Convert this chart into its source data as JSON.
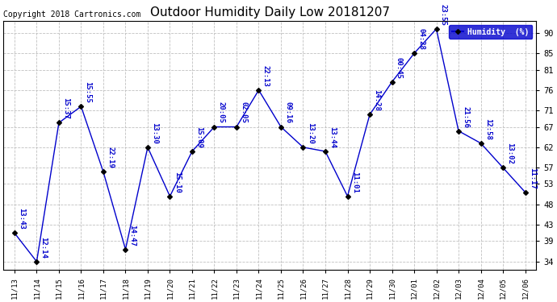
{
  "title": "Outdoor Humidity Daily Low 20181207",
  "copyright": "Copyright 2018 Cartronics.com",
  "legend_label": "Humidity  (%)",
  "x_labels": [
    "11/13",
    "11/14",
    "11/15",
    "11/16",
    "11/17",
    "11/18",
    "11/19",
    "11/20",
    "11/21",
    "11/22",
    "11/23",
    "11/24",
    "11/25",
    "11/26",
    "11/27",
    "11/28",
    "11/29",
    "11/30",
    "12/01",
    "12/02",
    "12/03",
    "12/04",
    "12/05",
    "12/06"
  ],
  "y_values": [
    41,
    34,
    68,
    72,
    56,
    37,
    62,
    50,
    61,
    67,
    67,
    76,
    67,
    62,
    61,
    50,
    70,
    78,
    85,
    91,
    66,
    63,
    57,
    51
  ],
  "point_labels": [
    "13:43",
    "12:14",
    "15:37",
    "15:55",
    "22:19",
    "14:47",
    "13:30",
    "15:10",
    "15:09",
    "20:05",
    "02:05",
    "22:13",
    "09:16",
    "13:20",
    "13:44",
    "11:01",
    "14:28",
    "00:45",
    "04:28",
    "23:55",
    "21:56",
    "12:58",
    "13:02",
    "11:17"
  ],
  "line_color": "#0000cc",
  "marker_color": "#000000",
  "bg_color": "#ffffff",
  "plot_bg_color": "#ffffff",
  "grid_color": "#c0c0c0",
  "title_fontsize": 11,
  "label_fontsize": 6.5,
  "copyright_fontsize": 7,
  "ylim": [
    32,
    93
  ],
  "yticks": [
    34,
    39,
    43,
    48,
    53,
    57,
    62,
    67,
    71,
    76,
    81,
    85,
    90
  ]
}
